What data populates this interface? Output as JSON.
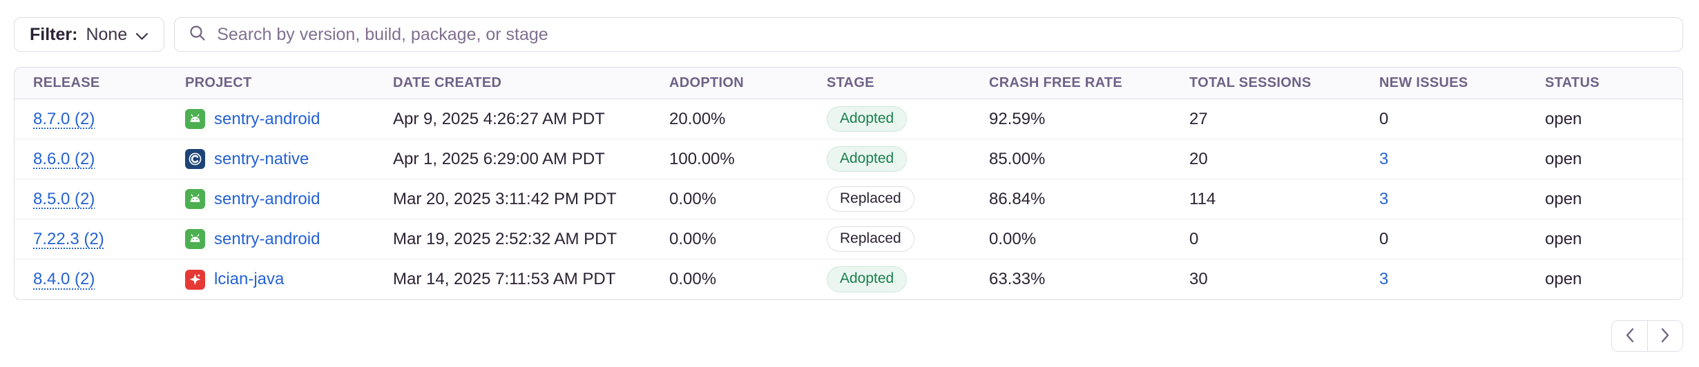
{
  "toolbar": {
    "filter_label": "Filter:",
    "filter_value": "None",
    "search_placeholder": "Search by version, build, package, or stage",
    "search_value": ""
  },
  "table": {
    "columns": [
      "RELEASE",
      "PROJECT",
      "DATE CREATED",
      "ADOPTION",
      "STAGE",
      "CRASH FREE RATE",
      "TOTAL SESSIONS",
      "NEW ISSUES",
      "STATUS"
    ],
    "rows": [
      {
        "release": "8.7.0 (2)",
        "project": "sentry-android",
        "platform_icon": "android-icon",
        "date_created": "Apr 9, 2025 4:26:27 AM PDT",
        "adoption": "20.00%",
        "stage": "Adopted",
        "stage_type": "adopted",
        "crash_free_rate": "92.59%",
        "total_sessions": "27",
        "new_issues": "0",
        "new_issues_is_link": false,
        "status": "open"
      },
      {
        "release": "8.6.0 (2)",
        "project": "sentry-native",
        "platform_icon": "c-icon",
        "date_created": "Apr 1, 2025 6:29:00 AM PDT",
        "adoption": "100.00%",
        "stage": "Adopted",
        "stage_type": "adopted",
        "crash_free_rate": "85.00%",
        "total_sessions": "20",
        "new_issues": "3",
        "new_issues_is_link": true,
        "status": "open"
      },
      {
        "release": "8.5.0 (2)",
        "project": "sentry-android",
        "platform_icon": "android-icon",
        "date_created": "Mar 20, 2025 3:11:42 PM PDT",
        "adoption": "0.00%",
        "stage": "Replaced",
        "stage_type": "replaced",
        "crash_free_rate": "86.84%",
        "total_sessions": "114",
        "new_issues": "3",
        "new_issues_is_link": true,
        "status": "open"
      },
      {
        "release": "7.22.3 (2)",
        "project": "sentry-android",
        "platform_icon": "android-icon",
        "date_created": "Mar 19, 2025 2:52:32 AM PDT",
        "adoption": "0.00%",
        "stage": "Replaced",
        "stage_type": "replaced",
        "crash_free_rate": "0.00%",
        "total_sessions": "0",
        "new_issues": "0",
        "new_issues_is_link": false,
        "status": "open"
      },
      {
        "release": "8.4.0 (2)",
        "project": "lcian-java",
        "platform_icon": "java-icon",
        "date_created": "Mar 14, 2025 7:11:53 AM PDT",
        "adoption": "0.00%",
        "stage": "Adopted",
        "stage_type": "adopted",
        "crash_free_rate": "63.33%",
        "total_sessions": "30",
        "new_issues": "3",
        "new_issues_is_link": true,
        "status": "open"
      }
    ]
  },
  "pagination": {
    "prev_icon": "chevron-left",
    "next_icon": "chevron-right"
  },
  "colors": {
    "link_blue": "#2562d4",
    "adopted_green": "#1c7e50",
    "header_text": "#6f6287",
    "border": "#e0dce5",
    "header_bg": "#faf9fb",
    "android_icon_bg": "#4caf50",
    "c_icon_bg": "#1d4477",
    "java_icon_bg": "#e53935"
  }
}
